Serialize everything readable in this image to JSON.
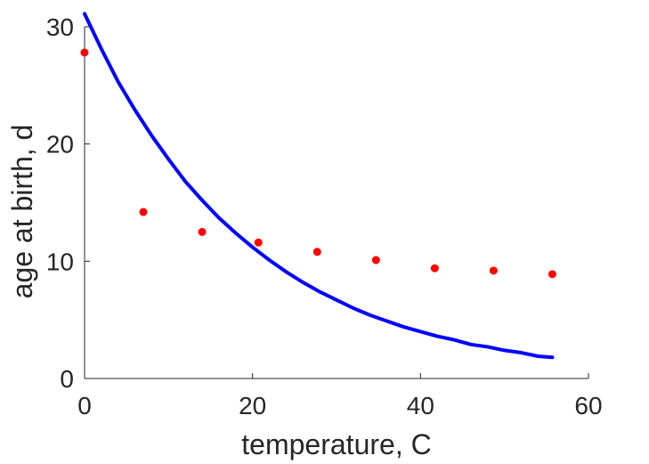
{
  "chart_data": {
    "type": "scatter",
    "title": "",
    "xlabel": "temperature, C",
    "ylabel": "age at birth, d",
    "xlim": [
      0,
      60
    ],
    "ylim": [
      0,
      30
    ],
    "x_ticks": [
      0,
      20,
      40,
      60
    ],
    "y_ticks": [
      0,
      10,
      20,
      30
    ],
    "grid": false,
    "series": [
      {
        "type": "scatter",
        "color": "#ff0000",
        "points": [
          [
            0,
            27.8
          ],
          [
            7,
            14.2
          ],
          [
            14,
            12.5
          ],
          [
            20.7,
            11.6
          ],
          [
            27.7,
            10.8
          ],
          [
            34.7,
            10.1
          ],
          [
            41.7,
            9.4
          ],
          [
            48.7,
            9.2
          ],
          [
            55.7,
            8.9
          ]
        ]
      },
      {
        "type": "line",
        "color": "#0000ff",
        "points": [
          [
            0,
            31.1
          ],
          [
            2,
            28.1
          ],
          [
            4,
            25.3
          ],
          [
            6,
            22.9
          ],
          [
            8,
            20.7
          ],
          [
            10,
            18.7
          ],
          [
            12,
            16.8
          ],
          [
            14,
            15.2
          ],
          [
            16,
            13.7
          ],
          [
            18,
            12.4
          ],
          [
            20,
            11.2
          ],
          [
            22,
            10.1
          ],
          [
            24,
            9.1
          ],
          [
            26,
            8.2
          ],
          [
            28,
            7.4
          ],
          [
            30,
            6.7
          ],
          [
            32,
            6.0
          ],
          [
            34,
            5.4
          ],
          [
            36,
            4.9
          ],
          [
            38,
            4.4
          ],
          [
            40,
            4.0
          ],
          [
            42,
            3.6
          ],
          [
            44,
            3.3
          ],
          [
            46,
            2.9
          ],
          [
            48,
            2.7
          ],
          [
            50,
            2.4
          ],
          [
            52,
            2.2
          ],
          [
            54,
            1.9
          ],
          [
            55.7,
            1.8
          ]
        ]
      }
    ]
  }
}
